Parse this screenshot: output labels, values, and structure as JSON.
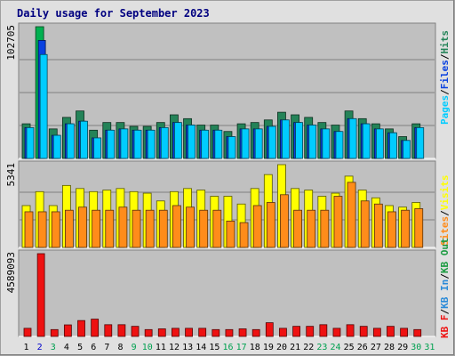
{
  "title": "Daily usage for September 2023",
  "colors": {
    "background": "#e0e0e0",
    "plot_bg": "#c0c0c0",
    "hits": "#248358",
    "hits_today": "#00b050",
    "files": "#0840e0",
    "pages": "#00ccff",
    "visits": "#ffff00",
    "sites": "#ff8c1a",
    "kbf": "#ee1111",
    "kb_in": "#2a8ad8",
    "kb_out": "#1a9a40",
    "day_weekday": "#000000",
    "day_weekend": "#00a050",
    "day_today": "#0000cc"
  },
  "chart_data": [
    {
      "type": "bar",
      "panel": "hits/files/pages",
      "x": [
        1,
        2,
        3,
        4,
        5,
        6,
        7,
        8,
        9,
        10,
        11,
        12,
        13,
        14,
        15,
        16,
        17,
        18,
        19,
        20,
        21,
        22,
        23,
        24,
        25,
        26,
        27,
        28,
        29,
        30,
        31
      ],
      "ylabel_value": "102705",
      "ylim": [
        0,
        102705
      ],
      "grid": true,
      "legend": [
        "Pages",
        "Files",
        "Hits"
      ],
      "series": [
        {
          "name": "Hits",
          "values": [
            27000,
            102705,
            23000,
            32000,
            37000,
            22000,
            28000,
            28000,
            25000,
            25000,
            28000,
            34000,
            31000,
            26000,
            26000,
            21000,
            27000,
            28000,
            30000,
            36000,
            34000,
            32000,
            28000,
            26000,
            37000,
            31000,
            27000,
            23000,
            17000,
            27000,
            0
          ]
        },
        {
          "name": "Files",
          "values": [
            24000,
            92000,
            18000,
            27000,
            29000,
            16000,
            22000,
            23000,
            22000,
            22000,
            24000,
            28000,
            26000,
            22000,
            22000,
            17000,
            23000,
            23000,
            25000,
            30000,
            28000,
            26000,
            23000,
            21000,
            31000,
            27000,
            23000,
            20000,
            14000,
            24000,
            0
          ]
        },
        {
          "name": "Pages",
          "values": [
            24000,
            81000,
            18000,
            27000,
            29000,
            16000,
            22000,
            23000,
            22000,
            22000,
            24000,
            28000,
            26000,
            22000,
            22000,
            17000,
            23000,
            23000,
            25000,
            30000,
            28000,
            26000,
            23000,
            21000,
            31000,
            27000,
            23000,
            20000,
            14000,
            24000,
            0
          ]
        }
      ]
    },
    {
      "type": "bar",
      "panel": "visits/sites",
      "x": [
        1,
        2,
        3,
        4,
        5,
        6,
        7,
        8,
        9,
        10,
        11,
        12,
        13,
        14,
        15,
        16,
        17,
        18,
        19,
        20,
        21,
        22,
        23,
        24,
        25,
        26,
        27,
        28,
        29,
        30,
        31
      ],
      "ylabel_value": "5341",
      "ylim": [
        0,
        5341
      ],
      "grid": true,
      "legend": [
        "Sites",
        "Visits"
      ],
      "series": [
        {
          "name": "Visits",
          "values": [
            2700,
            3600,
            2700,
            4000,
            3800,
            3600,
            3700,
            3800,
            3600,
            3500,
            3000,
            3600,
            3800,
            3700,
            3300,
            3300,
            2800,
            3800,
            4700,
            5341,
            3800,
            3700,
            3300,
            3500,
            4600,
            3700,
            3200,
            2700,
            2600,
            2900,
            0
          ]
        },
        {
          "name": "Sites",
          "values": [
            2300,
            2300,
            2300,
            2400,
            2600,
            2400,
            2400,
            2600,
            2400,
            2400,
            2400,
            2700,
            2600,
            2400,
            2400,
            1700,
            1600,
            2700,
            2900,
            3400,
            2400,
            2400,
            2400,
            3300,
            4200,
            3000,
            2800,
            2300,
            2400,
            2500,
            0
          ]
        }
      ]
    },
    {
      "type": "bar",
      "panel": "kbytes",
      "x": [
        1,
        2,
        3,
        4,
        5,
        6,
        7,
        8,
        9,
        10,
        11,
        12,
        13,
        14,
        15,
        16,
        17,
        18,
        19,
        20,
        21,
        22,
        23,
        24,
        25,
        26,
        27,
        28,
        29,
        30,
        31
      ],
      "ylabel_value": "4589093",
      "ylim": [
        0,
        4589093
      ],
      "grid": false,
      "legend": [
        "KB F",
        "KB In",
        "KB Out"
      ],
      "series": [
        {
          "name": "KB F",
          "values": [
            450000,
            4589093,
            380000,
            640000,
            880000,
            960000,
            650000,
            650000,
            560000,
            380000,
            420000,
            450000,
            450000,
            450000,
            380000,
            380000,
            420000,
            380000,
            760000,
            450000,
            560000,
            560000,
            650000,
            450000,
            650000,
            560000,
            450000,
            560000,
            450000,
            380000,
            0
          ]
        }
      ]
    }
  ],
  "axis": {
    "days": [
      "1",
      "2",
      "3",
      "4",
      "5",
      "6",
      "7",
      "8",
      "9",
      "10",
      "11",
      "12",
      "13",
      "14",
      "15",
      "16",
      "17",
      "18",
      "19",
      "20",
      "21",
      "22",
      "23",
      "24",
      "25",
      "26",
      "27",
      "28",
      "29",
      "30",
      "31"
    ],
    "weekend_days": [
      2,
      3,
      9,
      10,
      16,
      17,
      23,
      24,
      30,
      31
    ],
    "today": 2
  }
}
